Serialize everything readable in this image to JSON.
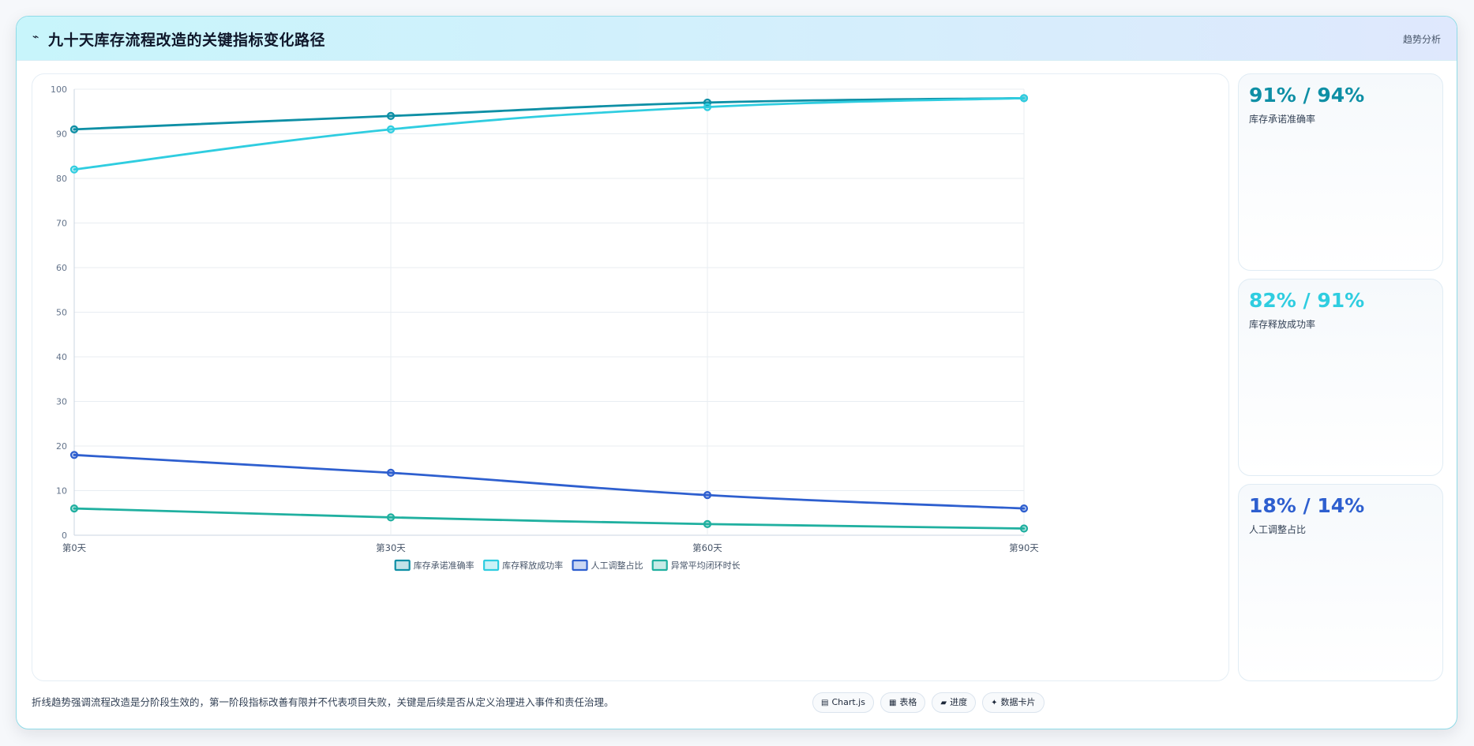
{
  "header": {
    "icon": "trend-line-icon",
    "title": "九十天库存流程改造的关键指标变化路径",
    "tag": "趋势分析"
  },
  "chart_data": {
    "type": "line",
    "categories": [
      "第0天",
      "第30天",
      "第60天",
      "第90天"
    ],
    "ylim": [
      0,
      100
    ],
    "yticks": [
      0,
      10,
      20,
      30,
      40,
      50,
      60,
      70,
      80,
      90,
      100
    ],
    "grid": true,
    "legend_position": "bottom",
    "series": [
      {
        "name": "库存承诺准确率",
        "values": [
          91,
          94,
          97,
          98
        ],
        "color": "#0e8fa5"
      },
      {
        "name": "库存释放成功率",
        "values": [
          82,
          91,
          96,
          98
        ],
        "color": "#2fcde0"
      },
      {
        "name": "人工调整占比",
        "values": [
          18,
          14,
          9,
          6
        ],
        "color": "#2e5fcf"
      },
      {
        "name": "异常平均闭环时长",
        "values": [
          6,
          4,
          2.5,
          1.5
        ],
        "color": "#20b0a0"
      }
    ]
  },
  "stats": [
    {
      "value": "91% / 94%",
      "label": "库存承诺准确率",
      "color": "#0e8fa5"
    },
    {
      "value": "82% / 91%",
      "label": "库存释放成功率",
      "color": "#2fcde0"
    },
    {
      "value": "18% / 14%",
      "label": "人工调整占比",
      "color": "#2e5fcf"
    }
  ],
  "footer": {
    "note": "折线趋势强调流程改造是分阶段生效的，第一阶段指标改善有限并不代表项目失败，关键是后续是否从定义治理进入事件和责任治理。",
    "pills": [
      {
        "icon": "▤",
        "label": "Chart.js"
      },
      {
        "icon": "▦",
        "label": "表格"
      },
      {
        "icon": "▰",
        "label": "进度"
      },
      {
        "icon": "✦",
        "label": "数据卡片"
      }
    ]
  }
}
